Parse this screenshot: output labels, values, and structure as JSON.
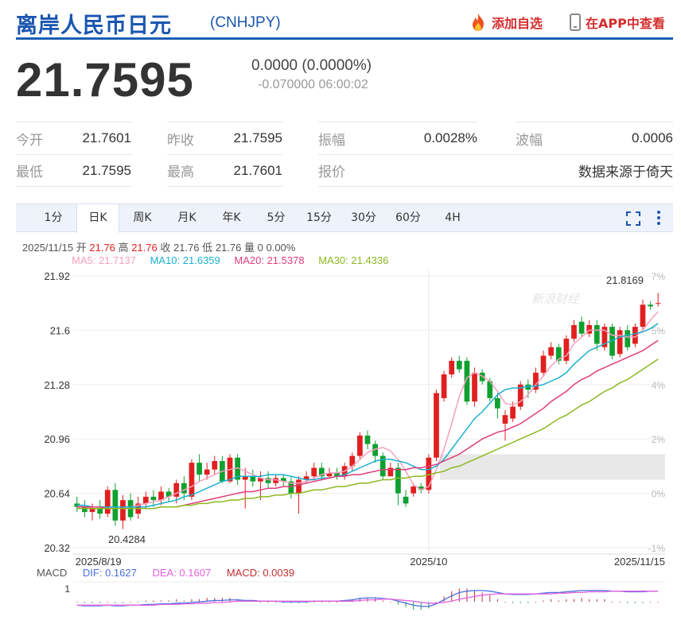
{
  "header": {
    "title": "离岸人民币日元",
    "code": "(CNHJPY)",
    "add_watch": "添加自选",
    "app_view": "在APP中查看"
  },
  "quote": {
    "price": "21.7595",
    "change": "0.0000 (0.0000%)",
    "sub": "-0.070000 06:00:02"
  },
  "stats": [
    {
      "label": "今开",
      "value": "21.7601"
    },
    {
      "label": "昨收",
      "value": "21.7595"
    },
    {
      "label": "振幅",
      "value": "0.0028%"
    },
    {
      "label": "波幅",
      "value": "0.0006"
    },
    {
      "label": "最低",
      "value": "21.7595"
    },
    {
      "label": "最高",
      "value": "21.7601"
    },
    {
      "label": "报价",
      "value": ""
    },
    {
      "label": "",
      "value": "数据来源于倚天"
    }
  ],
  "tabs": [
    "1分",
    "日K",
    "周K",
    "月K",
    "年K",
    "5分",
    "15分",
    "30分",
    "60分",
    "4H"
  ],
  "active_tab": "日K",
  "info": {
    "date": "2025/11/15",
    "open_label": "开",
    "open": "21.76",
    "high_label": "高",
    "high": "21.76",
    "close_label": "收",
    "close": "21.76",
    "low_label": "低",
    "low": "21.76",
    "vol_label": "量",
    "vol": "0",
    "pct": "0.00%"
  },
  "ma_legend": [
    {
      "text": "MA5: 21.7137",
      "color": "#f5a0c0"
    },
    {
      "text": "MA10: 21.6359",
      "color": "#1cb0d0"
    },
    {
      "text": "MA20: 21.5378",
      "color": "#e03c7a"
    },
    {
      "text": "MA30: 21.4336",
      "color": "#8cb820"
    }
  ],
  "macd_legend": {
    "label": "MACD",
    "dif": "DIF: 0.1627",
    "dif_color": "#4a6fe0",
    "dea": "DEA: 0.1607",
    "dea_color": "#e060e0",
    "macd": "MACD: 0.0039",
    "macd_color": "#c03030"
  },
  "chart_data": {
    "type": "candlestick",
    "y_ticks": [
      "21.92",
      "21.6",
      "21.28",
      "20.96",
      "20.64",
      "20.32"
    ],
    "y_pct_ticks": [
      "7%",
      "5%",
      "4%",
      "2%",
      "0%",
      "-1%"
    ],
    "x_labels": [
      "2025/8/19",
      "2025/10",
      "2025/11/15"
    ],
    "ylim": [
      20.32,
      21.92
    ],
    "annotations": {
      "max": "21.8169",
      "min": "20.4284"
    },
    "watermark": "新浪财经",
    "macd_axis_label": "1",
    "candles": [
      [
        20.58,
        20.56,
        20.62,
        20.53
      ],
      [
        20.56,
        20.53,
        20.6,
        20.5
      ],
      [
        20.53,
        20.55,
        20.58,
        20.48
      ],
      [
        20.55,
        20.52,
        20.6,
        20.49
      ],
      [
        20.52,
        20.66,
        20.68,
        20.5
      ],
      [
        20.66,
        20.48,
        20.7,
        20.45
      ],
      [
        20.48,
        20.6,
        20.63,
        20.43
      ],
      [
        20.6,
        20.5,
        20.64,
        20.48
      ],
      [
        20.52,
        20.58,
        20.62,
        20.49
      ],
      [
        20.58,
        20.62,
        20.65,
        20.55
      ],
      [
        20.62,
        20.6,
        20.66,
        20.56
      ],
      [
        20.6,
        20.65,
        20.68,
        20.57
      ],
      [
        20.65,
        20.62,
        20.67,
        20.59
      ],
      [
        20.62,
        20.7,
        20.72,
        20.58
      ],
      [
        20.7,
        20.64,
        20.74,
        20.6
      ],
      [
        20.62,
        20.82,
        20.84,
        20.6
      ],
      [
        20.82,
        20.75,
        20.87,
        20.71
      ],
      [
        20.75,
        20.78,
        20.82,
        20.72
      ],
      [
        20.78,
        20.83,
        20.86,
        20.75
      ],
      [
        20.83,
        20.71,
        20.86,
        20.7
      ],
      [
        20.71,
        20.85,
        20.87,
        20.7
      ],
      [
        20.85,
        20.72,
        20.87,
        20.69
      ],
      [
        20.72,
        20.74,
        20.79,
        20.55
      ],
      [
        20.74,
        20.71,
        20.78,
        20.68
      ],
      [
        20.71,
        20.73,
        20.77,
        20.6
      ],
      [
        20.73,
        20.7,
        20.77,
        20.67
      ],
      [
        20.7,
        20.73,
        20.75,
        20.68
      ],
      [
        20.73,
        20.71,
        20.75,
        20.68
      ],
      [
        20.71,
        20.64,
        20.74,
        20.61
      ],
      [
        20.64,
        20.72,
        20.74,
        20.52
      ],
      [
        20.72,
        20.74,
        20.77,
        20.7
      ],
      [
        20.74,
        20.79,
        20.82,
        20.72
      ],
      [
        20.79,
        20.74,
        20.82,
        20.72
      ],
      [
        20.74,
        20.76,
        20.79,
        20.73
      ],
      [
        20.76,
        20.74,
        20.79,
        20.72
      ],
      [
        20.74,
        20.8,
        20.82,
        20.72
      ],
      [
        20.8,
        20.86,
        20.88,
        20.77
      ],
      [
        20.86,
        20.98,
        21.0,
        20.84
      ],
      [
        20.98,
        20.93,
        21.01,
        20.9
      ],
      [
        20.93,
        20.86,
        20.95,
        20.82
      ],
      [
        20.86,
        20.74,
        20.88,
        20.72
      ],
      [
        20.74,
        20.79,
        20.82,
        20.77
      ],
      [
        20.79,
        20.64,
        20.82,
        20.57
      ],
      [
        20.62,
        20.58,
        20.66,
        20.56
      ],
      [
        20.64,
        20.68,
        20.7,
        20.62
      ],
      [
        20.68,
        20.66,
        20.7,
        20.64
      ],
      [
        20.66,
        20.85,
        20.87,
        20.64
      ],
      [
        20.85,
        21.23,
        21.25,
        20.83
      ],
      [
        21.2,
        21.34,
        21.36,
        21.18
      ],
      [
        21.34,
        21.42,
        21.44,
        21.32
      ],
      [
        21.42,
        21.37,
        21.45,
        21.35
      ],
      [
        21.42,
        21.18,
        21.44,
        21.16
      ],
      [
        21.18,
        21.35,
        21.38,
        21.15
      ],
      [
        21.35,
        21.3,
        21.37,
        21.28
      ],
      [
        21.3,
        21.2,
        21.32,
        21.18
      ],
      [
        21.2,
        21.14,
        21.23,
        21.08
      ],
      [
        21.05,
        21.1,
        21.13,
        20.95
      ],
      [
        21.08,
        21.15,
        21.18,
        21.06
      ],
      [
        21.15,
        21.28,
        21.3,
        21.13
      ],
      [
        21.28,
        21.25,
        21.31,
        21.2
      ],
      [
        21.25,
        21.35,
        21.38,
        21.23
      ],
      [
        21.35,
        21.45,
        21.48,
        21.33
      ],
      [
        21.45,
        21.5,
        21.53,
        21.43
      ],
      [
        21.5,
        21.42,
        21.52,
        21.4
      ],
      [
        21.42,
        21.55,
        21.57,
        21.4
      ],
      [
        21.55,
        21.63,
        21.66,
        21.53
      ],
      [
        21.65,
        21.58,
        21.68,
        21.56
      ],
      [
        21.58,
        21.63,
        21.66,
        21.56
      ],
      [
        21.63,
        21.52,
        21.66,
        21.48
      ],
      [
        21.5,
        21.62,
        21.64,
        21.48
      ],
      [
        21.62,
        21.45,
        21.64,
        21.43
      ],
      [
        21.46,
        21.6,
        21.62,
        21.44
      ],
      [
        21.6,
        21.5,
        21.63,
        21.48
      ],
      [
        21.52,
        21.62,
        21.64,
        21.5
      ],
      [
        21.62,
        21.75,
        21.78,
        21.6
      ],
      [
        21.75,
        21.74,
        21.77,
        21.72
      ],
      [
        21.76,
        21.76,
        21.82,
        21.74
      ]
    ],
    "series": [
      {
        "name": "MA5",
        "color": "#f5a0c0"
      },
      {
        "name": "MA10",
        "color": "#1cb0d0"
      },
      {
        "name": "MA20",
        "color": "#e03c7a"
      },
      {
        "name": "MA30",
        "color": "#8cb820"
      }
    ],
    "ma_values": {
      "MA5": [
        20.57,
        20.56,
        20.55,
        20.55,
        20.56,
        20.55,
        20.55,
        20.56,
        20.57,
        20.58,
        20.59,
        20.6,
        20.62,
        20.64,
        20.66,
        20.68,
        20.71,
        20.73,
        20.75,
        20.77,
        20.78,
        20.79,
        20.77,
        20.75,
        20.73,
        20.72,
        20.72,
        20.71,
        20.7,
        20.7,
        20.71,
        20.73,
        20.75,
        20.76,
        20.76,
        20.77,
        20.8,
        20.84,
        20.88,
        20.9,
        20.91,
        20.89,
        20.84,
        20.77,
        20.69,
        20.66,
        20.68,
        20.78,
        20.9,
        21.05,
        21.21,
        21.32,
        21.35,
        21.33,
        21.3,
        21.24,
        21.17,
        21.16,
        21.18,
        21.22,
        21.28,
        21.33,
        21.39,
        21.43,
        21.45,
        21.52,
        21.56,
        21.6,
        21.6,
        21.6,
        21.57,
        21.57,
        21.56,
        21.56,
        21.6,
        21.66,
        21.71
      ],
      "MA10": [
        20.57,
        20.57,
        20.56,
        20.56,
        20.56,
        20.56,
        20.56,
        20.56,
        20.56,
        20.56,
        20.57,
        20.58,
        20.59,
        20.6,
        20.62,
        20.63,
        20.65,
        20.67,
        20.69,
        20.71,
        20.72,
        20.74,
        20.74,
        20.74,
        20.74,
        20.75,
        20.75,
        20.75,
        20.74,
        20.73,
        20.72,
        20.72,
        20.73,
        20.73,
        20.74,
        20.75,
        20.77,
        20.79,
        20.81,
        20.83,
        20.84,
        20.84,
        20.83,
        20.82,
        20.8,
        20.78,
        20.78,
        20.8,
        20.84,
        20.9,
        20.96,
        21.02,
        21.08,
        21.12,
        21.17,
        21.22,
        21.25,
        21.26,
        21.26,
        21.27,
        21.27,
        21.28,
        21.3,
        21.32,
        21.35,
        21.4,
        21.44,
        21.48,
        21.5,
        21.52,
        21.54,
        21.56,
        21.57,
        21.58,
        21.59,
        21.61,
        21.64
      ],
      "MA20": [
        20.56,
        20.56,
        20.56,
        20.56,
        20.55,
        20.55,
        20.55,
        20.55,
        20.55,
        20.55,
        20.55,
        20.56,
        20.56,
        20.56,
        20.57,
        20.58,
        20.59,
        20.6,
        20.61,
        20.62,
        20.63,
        20.64,
        20.65,
        20.65,
        20.66,
        20.67,
        20.67,
        20.68,
        20.68,
        20.69,
        20.7,
        20.71,
        20.72,
        20.73,
        20.74,
        20.74,
        20.75,
        20.75,
        20.76,
        20.77,
        20.78,
        20.78,
        20.78,
        20.78,
        20.79,
        20.79,
        20.8,
        20.81,
        20.83,
        20.85,
        20.87,
        20.9,
        20.93,
        20.96,
        20.98,
        21.0,
        21.01,
        21.03,
        21.05,
        21.08,
        21.11,
        21.14,
        21.18,
        21.21,
        21.24,
        21.28,
        21.31,
        21.33,
        21.36,
        21.38,
        21.4,
        21.42,
        21.44,
        21.46,
        21.48,
        21.51,
        21.54
      ],
      "MA30": [
        20.55,
        20.55,
        20.55,
        20.55,
        20.55,
        20.55,
        20.55,
        20.55,
        20.55,
        20.55,
        20.55,
        20.56,
        20.56,
        20.56,
        20.57,
        20.57,
        20.58,
        20.58,
        20.59,
        20.59,
        20.6,
        20.6,
        20.61,
        20.61,
        20.62,
        20.62,
        20.63,
        20.63,
        20.64,
        20.64,
        20.65,
        20.66,
        20.66,
        20.67,
        20.68,
        20.68,
        20.69,
        20.7,
        20.7,
        20.71,
        20.72,
        20.72,
        20.73,
        20.73,
        20.74,
        20.74,
        20.75,
        20.76,
        20.77,
        20.79,
        20.8,
        20.82,
        20.84,
        20.86,
        20.88,
        20.9,
        20.92,
        20.94,
        20.96,
        20.98,
        21.0,
        21.02,
        21.05,
        21.08,
        21.1,
        21.13,
        21.16,
        21.18,
        21.21,
        21.24,
        21.26,
        21.29,
        21.31,
        21.34,
        21.37,
        21.4,
        21.43
      ]
    },
    "macd": {
      "ylim": [
        -0.25,
        0.3
      ],
      "dif": [
        -0.05,
        -0.06,
        -0.06,
        -0.06,
        -0.05,
        -0.06,
        -0.06,
        -0.05,
        -0.05,
        -0.04,
        -0.04,
        -0.03,
        -0.03,
        -0.02,
        -0.02,
        -0.01,
        0.0,
        0.01,
        0.02,
        0.02,
        0.03,
        0.03,
        0.02,
        0.02,
        0.01,
        0.01,
        0.01,
        0.0,
        0.0,
        0.0,
        0.0,
        0.01,
        0.01,
        0.01,
        0.01,
        0.02,
        0.03,
        0.05,
        0.06,
        0.06,
        0.05,
        0.04,
        0.01,
        -0.02,
        -0.05,
        -0.07,
        -0.07,
        -0.03,
        0.03,
        0.09,
        0.14,
        0.16,
        0.17,
        0.17,
        0.16,
        0.14,
        0.12,
        0.11,
        0.11,
        0.11,
        0.12,
        0.13,
        0.14,
        0.14,
        0.15,
        0.16,
        0.17,
        0.17,
        0.17,
        0.17,
        0.16,
        0.16,
        0.15,
        0.15,
        0.15,
        0.16,
        0.16
      ],
      "dea": [
        -0.05,
        -0.05,
        -0.05,
        -0.05,
        -0.05,
        -0.05,
        -0.05,
        -0.05,
        -0.05,
        -0.05,
        -0.05,
        -0.04,
        -0.04,
        -0.04,
        -0.03,
        -0.03,
        -0.02,
        -0.02,
        -0.01,
        -0.01,
        0.0,
        0.01,
        0.01,
        0.01,
        0.01,
        0.01,
        0.01,
        0.01,
        0.01,
        0.01,
        0.01,
        0.01,
        0.01,
        0.01,
        0.01,
        0.01,
        0.01,
        0.02,
        0.03,
        0.03,
        0.04,
        0.04,
        0.03,
        0.02,
        0.01,
        -0.01,
        -0.02,
        -0.02,
        -0.01,
        0.01,
        0.04,
        0.06,
        0.08,
        0.1,
        0.11,
        0.12,
        0.12,
        0.12,
        0.12,
        0.12,
        0.12,
        0.12,
        0.12,
        0.13,
        0.13,
        0.14,
        0.14,
        0.15,
        0.15,
        0.15,
        0.16,
        0.16,
        0.16,
        0.16,
        0.16,
        0.16,
        0.16
      ]
    }
  }
}
